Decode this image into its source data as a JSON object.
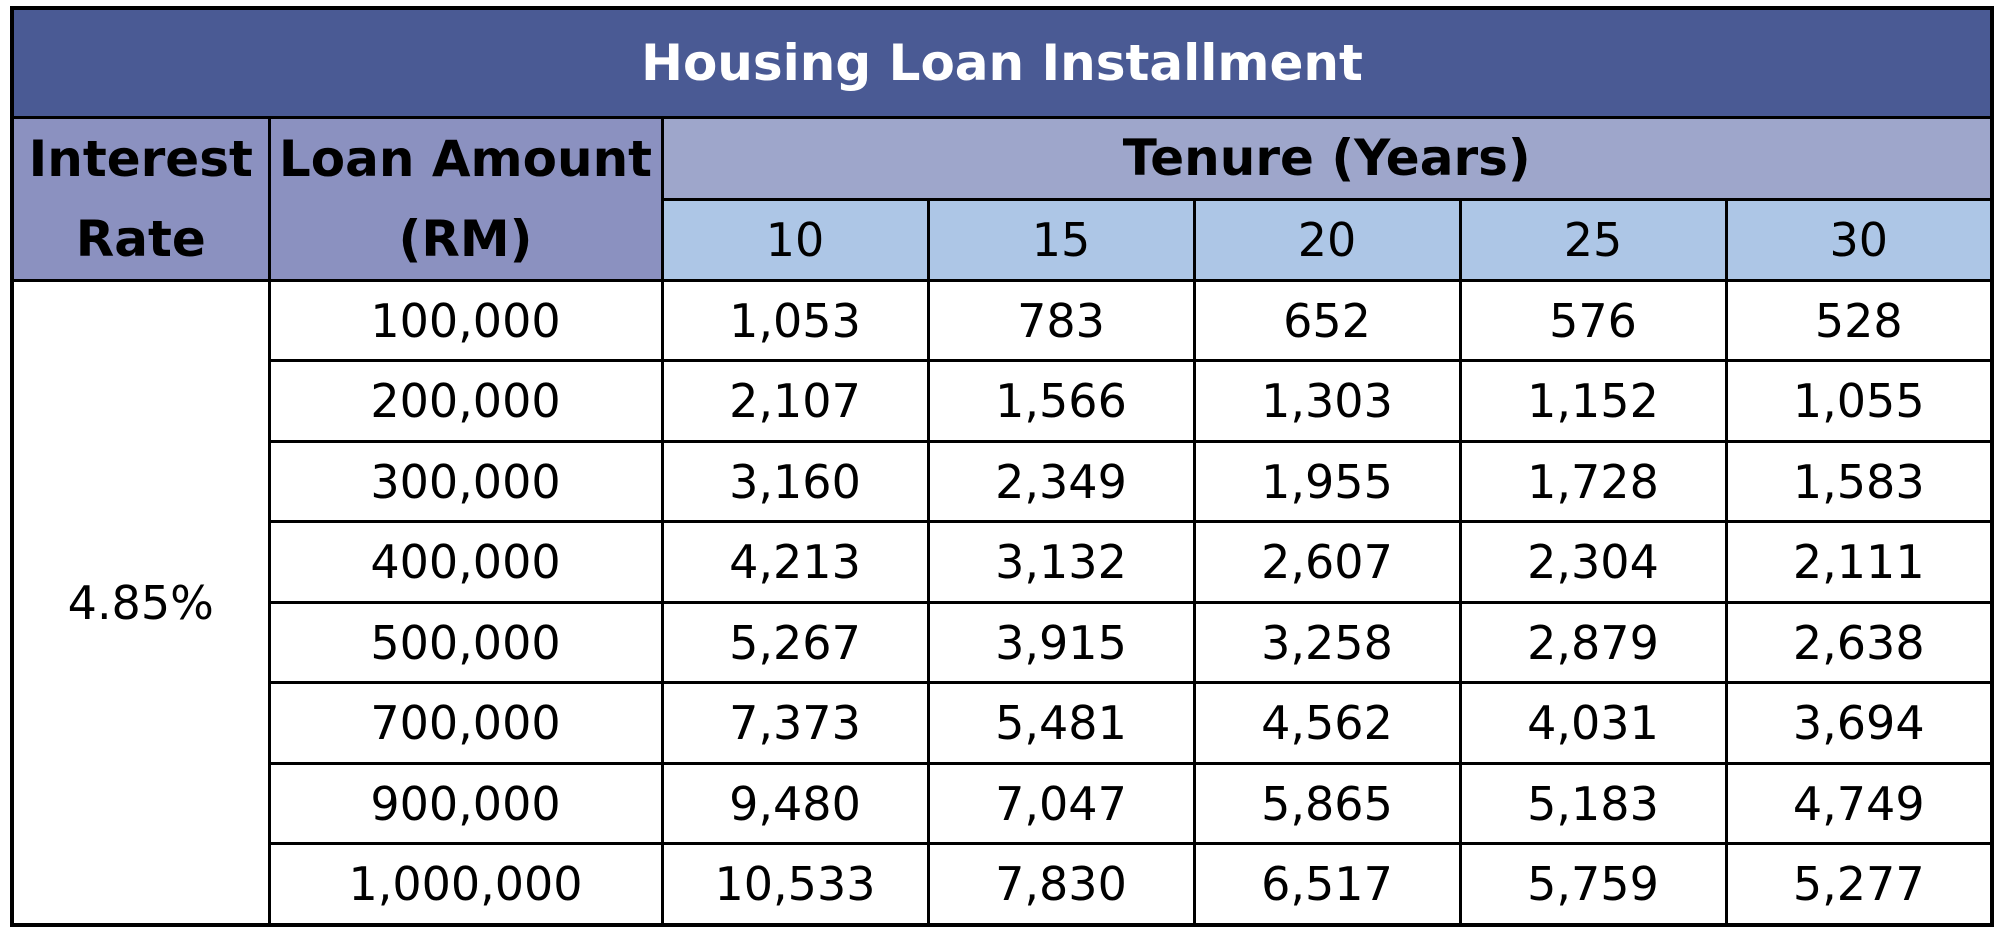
{
  "chart_data": {
    "type": "table",
    "title": "Housing Loan Installment",
    "row_header": [
      "Interest",
      "Rate"
    ],
    "col_header": [
      "Loan Amount",
      "(RM)"
    ],
    "tenure_label": "Tenure (Years)",
    "tenures": [
      "10",
      "15",
      "20",
      "25",
      "30"
    ],
    "interest_rate": "4.85%",
    "rows": [
      {
        "amount": "100,000",
        "values": [
          "1,053",
          "783",
          "652",
          "576",
          "528"
        ]
      },
      {
        "amount": "200,000",
        "values": [
          "2,107",
          "1,566",
          "1,303",
          "1,152",
          "1,055"
        ]
      },
      {
        "amount": "300,000",
        "values": [
          "3,160",
          "2,349",
          "1,955",
          "1,728",
          "1,583"
        ]
      },
      {
        "amount": "400,000",
        "values": [
          "4,213",
          "3,132",
          "2,607",
          "2,304",
          "2,111"
        ]
      },
      {
        "amount": "500,000",
        "values": [
          "5,267",
          "3,915",
          "3,258",
          "2,879",
          "2,638"
        ]
      },
      {
        "amount": "700,000",
        "values": [
          "7,373",
          "5,481",
          "4,562",
          "4,031",
          "3,694"
        ]
      },
      {
        "amount": "900,000",
        "values": [
          "9,480",
          "7,047",
          "5,865",
          "5,183",
          "4,749"
        ]
      },
      {
        "amount": "1,000,000",
        "values": [
          "10,533",
          "7,830",
          "6,517",
          "5,759",
          "5,277"
        ]
      }
    ]
  },
  "colors": {
    "title_bg": "#4a5a94",
    "header_left_bg": "#8b91c0",
    "tenure_bg": "#9ea6cb",
    "year_bg": "#adc6e6"
  }
}
